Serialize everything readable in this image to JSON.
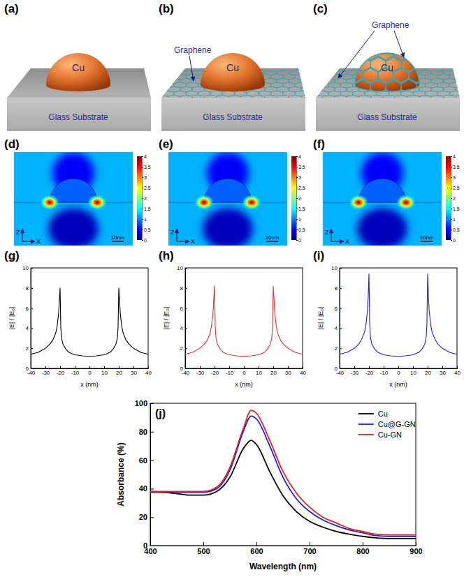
{
  "schematics": [
    {
      "label": "(a)",
      "particle": "Cu",
      "substrate": "Glass Substrate"
    },
    {
      "label": "(b)",
      "particle": "Cu",
      "substrate": "Glass Substrate",
      "graphene": "Graphene",
      "wrapped": false
    },
    {
      "label": "(c)",
      "particle": "Cu",
      "substrate": "Glass Substrate",
      "graphene": "Graphene",
      "wrapped": true
    }
  ],
  "field_maps": [
    {
      "label": "(d)",
      "scale_bar": "10nm",
      "axis_labels": [
        "Z",
        "X"
      ],
      "colorbar": {
        "range": [
          0,
          4
        ],
        "ticks": [
          0,
          0.5,
          1,
          1.5,
          2,
          2.5,
          3,
          3.5,
          4
        ]
      }
    },
    {
      "label": "(e)",
      "scale_bar": "10nm",
      "axis_labels": [
        "Z",
        "X"
      ],
      "colorbar": {
        "range": [
          0,
          4
        ],
        "ticks": [
          0,
          0.5,
          1,
          1.5,
          2,
          2.5,
          3,
          3.5,
          4
        ]
      }
    },
    {
      "label": "(f)",
      "scale_bar": "10nm",
      "axis_labels": [
        "Z",
        "X"
      ],
      "colorbar": {
        "range": [
          0,
          4
        ],
        "ticks": [
          0,
          0.5,
          1,
          1.5,
          2,
          2.5,
          3,
          3.5,
          4
        ]
      }
    }
  ],
  "chart_data": [
    {
      "type": "line",
      "title": "(g)",
      "xlabel": "x (nm)",
      "ylabel": "|E| / |E₀|",
      "x": [
        -40,
        -35,
        -30,
        -27,
        -25,
        -23,
        -22,
        -21,
        -20.5,
        -20,
        -19.5,
        -19,
        -18,
        -16,
        -14,
        -10,
        -5,
        0,
        5,
        10,
        14,
        16,
        18,
        19,
        19.5,
        20,
        20.5,
        21,
        22,
        23,
        25,
        27,
        30,
        35,
        40
      ],
      "series": [
        {
          "color": "#000000",
          "values": [
            1.4,
            1.6,
            2.0,
            2.4,
            2.8,
            3.5,
            4.2,
            5.5,
            6.8,
            8.0,
            4.0,
            3.0,
            2.4,
            1.9,
            1.6,
            1.35,
            1.25,
            1.2,
            1.25,
            1.35,
            1.6,
            1.9,
            2.4,
            3.0,
            4.0,
            8.0,
            6.8,
            5.5,
            4.2,
            3.5,
            2.8,
            2.4,
            2.0,
            1.6,
            1.4
          ]
        }
      ],
      "xlim": [
        -40,
        40
      ],
      "xticks": [
        -40,
        -30,
        -20,
        -10,
        0,
        10,
        20,
        30,
        40
      ],
      "ylim": [
        0,
        10
      ],
      "yticks": [
        0,
        2,
        4,
        6,
        8,
        10
      ]
    },
    {
      "type": "line",
      "title": "(h)",
      "xlabel": "x (nm)",
      "ylabel": "|E| / |E₀|",
      "x": [
        -40,
        -35,
        -30,
        -27,
        -25,
        -23,
        -22,
        -21,
        -20.5,
        -20,
        -19.5,
        -19,
        -18,
        -16,
        -14,
        -10,
        -5,
        0,
        5,
        10,
        14,
        16,
        18,
        19,
        19.5,
        20,
        20.5,
        21,
        22,
        23,
        25,
        27,
        30,
        35,
        40
      ],
      "series": [
        {
          "color": "#e8333a",
          "values": [
            1.4,
            1.6,
            2.0,
            2.4,
            2.8,
            3.5,
            4.3,
            5.6,
            7.0,
            8.2,
            4.1,
            3.0,
            2.4,
            1.9,
            1.6,
            1.35,
            1.25,
            1.2,
            1.25,
            1.35,
            1.6,
            1.9,
            2.4,
            3.0,
            4.1,
            8.2,
            7.0,
            5.6,
            4.3,
            3.5,
            2.8,
            2.4,
            2.0,
            1.6,
            1.4
          ]
        }
      ],
      "xlim": [
        -40,
        40
      ],
      "xticks": [
        -40,
        -30,
        -20,
        -10,
        0,
        10,
        20,
        30,
        40
      ],
      "ylim": [
        0,
        10
      ],
      "yticks": [
        0,
        2,
        4,
        6,
        8,
        10
      ]
    },
    {
      "type": "line",
      "title": "(i)",
      "xlabel": "x (nm)",
      "ylabel": "|E| / |E₀|",
      "x": [
        -40,
        -35,
        -30,
        -27,
        -25,
        -23,
        -22,
        -21,
        -20.5,
        -20,
        -19.5,
        -19,
        -18,
        -16,
        -14,
        -10,
        -5,
        0,
        5,
        10,
        14,
        16,
        18,
        19,
        19.5,
        20,
        20.5,
        21,
        22,
        23,
        25,
        27,
        30,
        35,
        40
      ],
      "series": [
        {
          "color": "#2020d0",
          "values": [
            1.4,
            1.6,
            2.0,
            2.4,
            2.9,
            3.6,
            4.4,
            5.8,
            7.2,
            9.4,
            4.5,
            3.1,
            2.4,
            1.9,
            1.6,
            1.35,
            1.25,
            1.2,
            1.25,
            1.35,
            1.6,
            1.9,
            2.4,
            3.1,
            4.5,
            9.4,
            7.2,
            5.8,
            4.4,
            3.6,
            2.9,
            2.4,
            2.0,
            1.6,
            1.4
          ]
        }
      ],
      "xlim": [
        -40,
        40
      ],
      "xticks": [
        -40,
        -30,
        -20,
        -10,
        0,
        10,
        20,
        30,
        40
      ],
      "ylim": [
        0,
        10
      ],
      "yticks": [
        0,
        2,
        4,
        6,
        8,
        10
      ]
    },
    {
      "type": "line",
      "title": "(j)",
      "xlabel": "Wavelength (nm)",
      "ylabel": "Absorbance (%)",
      "x": [
        400,
        425,
        450,
        475,
        500,
        525,
        550,
        575,
        590,
        600,
        625,
        650,
        675,
        700,
        725,
        750,
        775,
        800,
        825,
        850,
        875,
        900
      ],
      "series": [
        {
          "name": "Cu",
          "color": "#000000",
          "values": [
            38,
            37.5,
            36.5,
            35.5,
            35.5,
            38,
            48,
            68,
            74,
            71,
            52,
            35,
            24,
            17,
            13,
            10,
            8,
            6.5,
            5.5,
            5,
            5,
            5
          ]
        },
        {
          "name": "Cu@G-GN",
          "color": "#1f1fe0",
          "values": [
            37.5,
            37.5,
            37.5,
            37.5,
            37.5,
            40,
            53,
            80,
            91,
            89,
            70,
            48,
            33,
            24,
            18,
            14,
            11,
            9,
            7,
            6.5,
            6.5,
            6.5
          ]
        },
        {
          "name": "Cu-GN",
          "color": "#e81f1f",
          "values": [
            38,
            38,
            38,
            38,
            38,
            41,
            55,
            82,
            95,
            93,
            74,
            52,
            37,
            27,
            20,
            16,
            12,
            10,
            8,
            7.5,
            7.5,
            7.5
          ]
        }
      ],
      "xlim": [
        400,
        900
      ],
      "xticks": [
        400,
        500,
        600,
        700,
        800,
        900
      ],
      "ylim": [
        0,
        100
      ],
      "yticks": [
        0,
        20,
        40,
        60,
        80,
        100
      ],
      "legend": "top-right"
    }
  ]
}
